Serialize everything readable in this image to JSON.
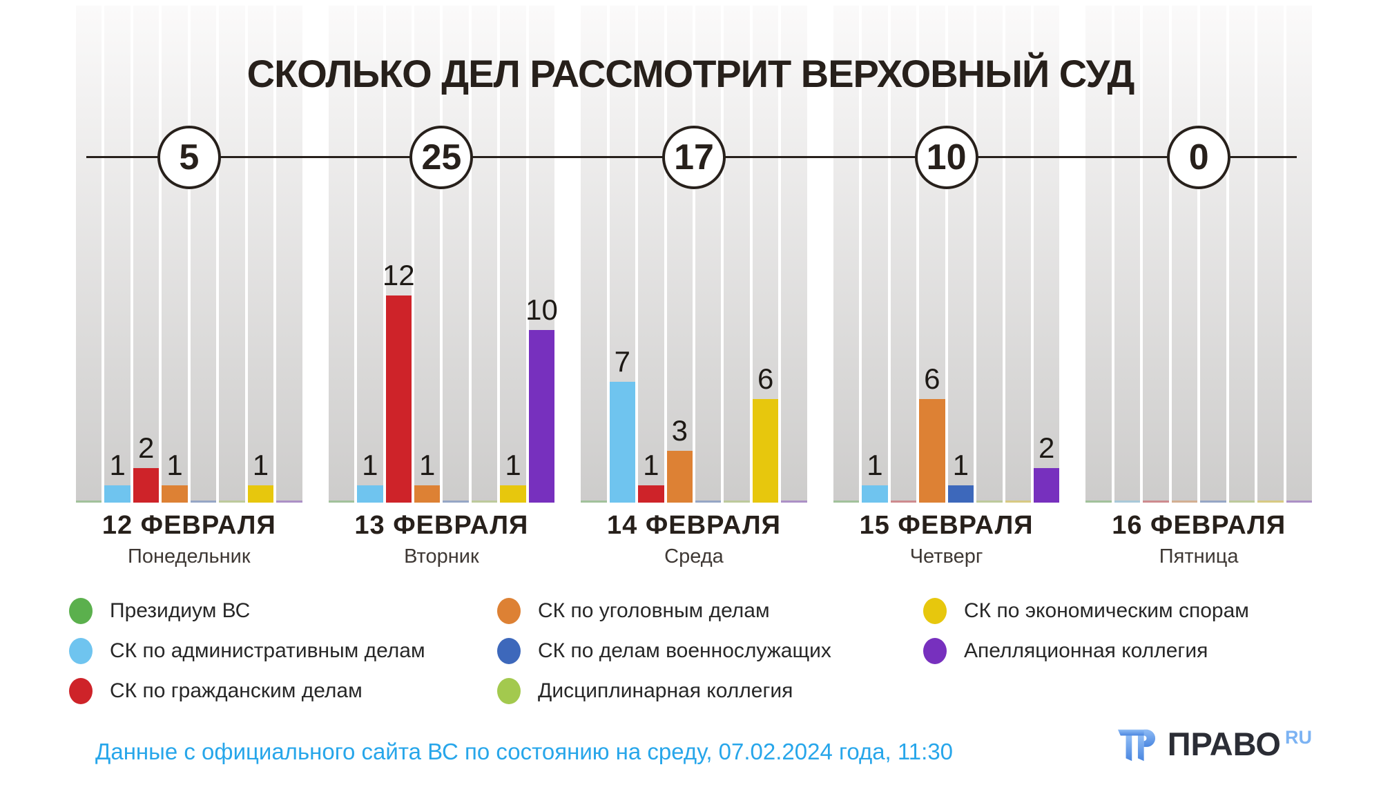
{
  "title": "СКОЛЬКО ДЕЛ РАССМОТРИТ ВЕРХОВНЫЙ СУД",
  "chart_data": {
    "type": "bar",
    "title": "СКОЛЬКО ДЕЛ РАССМОТРИТ ВЕРХОВНЫЙ СУД",
    "value_unit": "дел",
    "ylim": [
      0,
      28
    ],
    "grid": false,
    "legend_position": "bottom",
    "categories": [
      {
        "id": "presidium",
        "label": "Президиум ВС",
        "color": "#5BB04D"
      },
      {
        "id": "administrative",
        "label": "СК по административным делам",
        "color": "#6FC4EF"
      },
      {
        "id": "civil",
        "label": "СК по гражданским делам",
        "color": "#CE2329"
      },
      {
        "id": "criminal",
        "label": "СК по уголовным делам",
        "color": "#DD8134"
      },
      {
        "id": "military",
        "label": "СК по делам военнослужащих",
        "color": "#3D68BB"
      },
      {
        "id": "disciplinary",
        "label": "Дисциплинарная коллегия",
        "color": "#A3C94E"
      },
      {
        "id": "economic",
        "label": "СК по экономическим спорам",
        "color": "#E7C70D"
      },
      {
        "id": "appellate",
        "label": "Апелляционная коллегия",
        "color": "#7730BE"
      }
    ],
    "legend_columns": [
      [
        0,
        1,
        2
      ],
      [
        3,
        4,
        5
      ],
      [
        6,
        7
      ]
    ],
    "days": [
      {
        "date": "12 ФЕВРАЛЯ",
        "weekday": "Понедельник",
        "total": 5,
        "values": [
          0,
          1,
          2,
          1,
          0,
          0,
          1,
          0
        ]
      },
      {
        "date": "13 ФЕВРАЛЯ",
        "weekday": "Вторник",
        "total": 25,
        "values": [
          0,
          1,
          12,
          1,
          0,
          0,
          1,
          10
        ]
      },
      {
        "date": "14 ФЕВРАЛЯ",
        "weekday": "Среда",
        "total": 17,
        "values": [
          0,
          7,
          1,
          3,
          0,
          0,
          6,
          0
        ]
      },
      {
        "date": "15 ФЕВРАЛЯ",
        "weekday": "Четверг",
        "total": 10,
        "values": [
          0,
          1,
          0,
          6,
          1,
          0,
          0,
          2
        ]
      },
      {
        "date": "16 ФЕВРАЛЯ",
        "weekday": "Пятница",
        "total": 0,
        "values": [
          0,
          0,
          0,
          0,
          0,
          0,
          0,
          0
        ]
      }
    ]
  },
  "footer": {
    "source": "Данные с официального сайта ВС по состоянию на среду, 07.02.2024 года, 11:30"
  },
  "logo": {
    "brand": "ПРАВО",
    "suffix": "RU"
  },
  "theme": {
    "text_dark": "#27201b",
    "stripe_top": "#fbfafa",
    "stripe_bottom": "#cdcccb",
    "footer_blue": "#27a6ea",
    "logo_dark": "#2b2d35",
    "logo_blue": "#7cb3f3"
  }
}
